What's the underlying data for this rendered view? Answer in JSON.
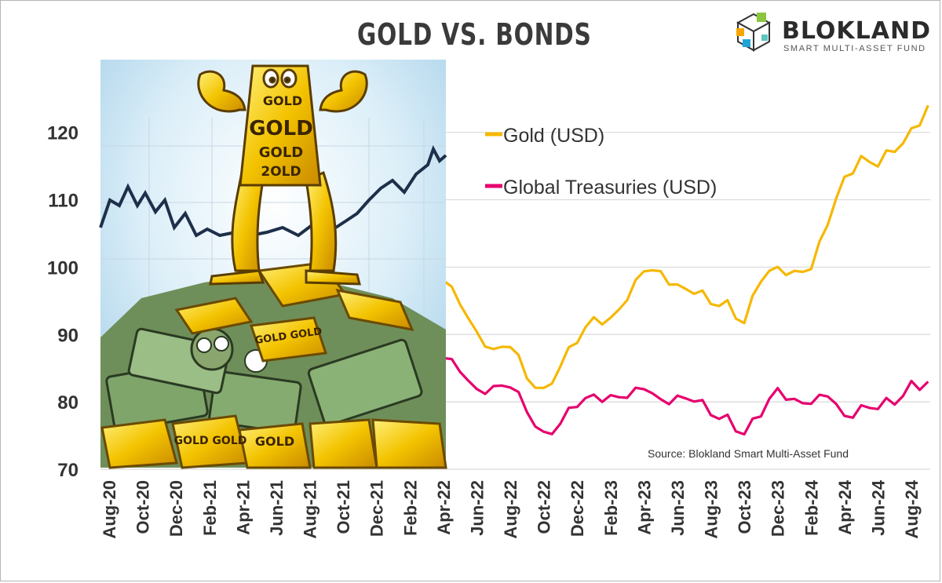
{
  "header": {
    "title": "GOLD VS. BONDS"
  },
  "brand": {
    "name": "BLOKLAND",
    "tagline": "SMART MULTI-ASSET FUND"
  },
  "source_note": "Source: Blokland Smart Multi-Asset Fund",
  "illustration": {
    "icon": "muscular-gold-bar-cartoon",
    "bar_text": [
      "GOLD",
      "GOLD",
      "GOLD",
      "2OLD"
    ],
    "stack_text": [
      "GOLD GOLD",
      "GOLD GOLD",
      "GOLD"
    ]
  },
  "colors": {
    "gold": "#f5b800",
    "treasuries": "#e6006e",
    "grid": "#d9d9d9"
  },
  "chart_data": {
    "type": "line",
    "title": "GOLD VS. BONDS",
    "xlabel": "",
    "ylabel": "",
    "ylim": [
      70,
      128
    ],
    "yticks": [
      70,
      80,
      90,
      100,
      110,
      120
    ],
    "grid": true,
    "legend_position": "top-right",
    "x_tick_labels": [
      "Aug-20",
      "Oct-20",
      "Dec-20",
      "Feb-21",
      "Apr-21",
      "Jun-21",
      "Aug-21",
      "Oct-21",
      "Dec-21",
      "Feb-22",
      "Apr-22",
      "Jun-22",
      "Aug-22",
      "Oct-22",
      "Dec-22",
      "Feb-23",
      "Apr-23",
      "Jun-23",
      "Aug-23",
      "Oct-23",
      "Dec-23",
      "Feb-24",
      "Apr-24",
      "Jun-24",
      "Aug-24"
    ],
    "series": [
      {
        "name": "Gold (USD)",
        "color": "#f5b800",
        "points": [
          [
            "Apr-22",
            98
          ],
          [
            "May-22",
            94
          ],
          [
            "Jun-22",
            91
          ],
          [
            "Jul-22",
            87.5
          ],
          [
            "Aug-22",
            88
          ],
          [
            "Sep-22",
            84
          ],
          [
            "Oct-22",
            81.5
          ],
          [
            "Nov-22",
            85.5
          ],
          [
            "Dec-22",
            89
          ],
          [
            "Jan-23",
            92
          ],
          [
            "Feb-23",
            93
          ],
          [
            "Mar-23",
            95
          ],
          [
            "Apr-23",
            99
          ],
          [
            "May-23",
            100
          ],
          [
            "Jun-23",
            97
          ],
          [
            "Jul-23",
            96
          ],
          [
            "Aug-23",
            95
          ],
          [
            "Sep-23",
            94.5
          ],
          [
            "Oct-23",
            92
          ],
          [
            "Nov-23",
            98
          ],
          [
            "Dec-23",
            99.5
          ],
          [
            "Jan-24",
            100
          ],
          [
            "Feb-24",
            99.5
          ],
          [
            "Mar-24",
            106
          ],
          [
            "Apr-24",
            114
          ],
          [
            "May-24",
            116
          ],
          [
            "Jun-24",
            115
          ],
          [
            "Jul-24",
            117.5
          ],
          [
            "Aug-24",
            120
          ],
          [
            "Sep-24",
            124
          ]
        ]
      },
      {
        "name": "Global Treasuries (USD)",
        "color": "#e6006e",
        "points": [
          [
            "Apr-22",
            86.5
          ],
          [
            "May-22",
            84
          ],
          [
            "Jun-22",
            82.5
          ],
          [
            "Jul-22",
            82
          ],
          [
            "Aug-22",
            82
          ],
          [
            "Sep-22",
            79
          ],
          [
            "Oct-22",
            75
          ],
          [
            "Nov-22",
            77
          ],
          [
            "Dec-22",
            79.5
          ],
          [
            "Jan-23",
            80.5
          ],
          [
            "Feb-23",
            81.5
          ],
          [
            "Mar-23",
            80.5
          ],
          [
            "Apr-23",
            81.5
          ],
          [
            "May-23",
            81
          ],
          [
            "Jun-23",
            80.5
          ],
          [
            "Jul-23",
            80
          ],
          [
            "Aug-23",
            78.5
          ],
          [
            "Sep-23",
            77.5
          ],
          [
            "Oct-23",
            75.5
          ],
          [
            "Nov-23",
            78
          ],
          [
            "Dec-23",
            81.5
          ],
          [
            "Jan-24",
            81
          ],
          [
            "Feb-24",
            79.5
          ],
          [
            "Mar-24",
            80.5
          ],
          [
            "Apr-24",
            78.5
          ],
          [
            "May-24",
            79
          ],
          [
            "Jun-24",
            79
          ],
          [
            "Jul-24",
            80
          ],
          [
            "Aug-24",
            82.5
          ],
          [
            "Sep-24",
            83
          ]
        ]
      }
    ]
  }
}
